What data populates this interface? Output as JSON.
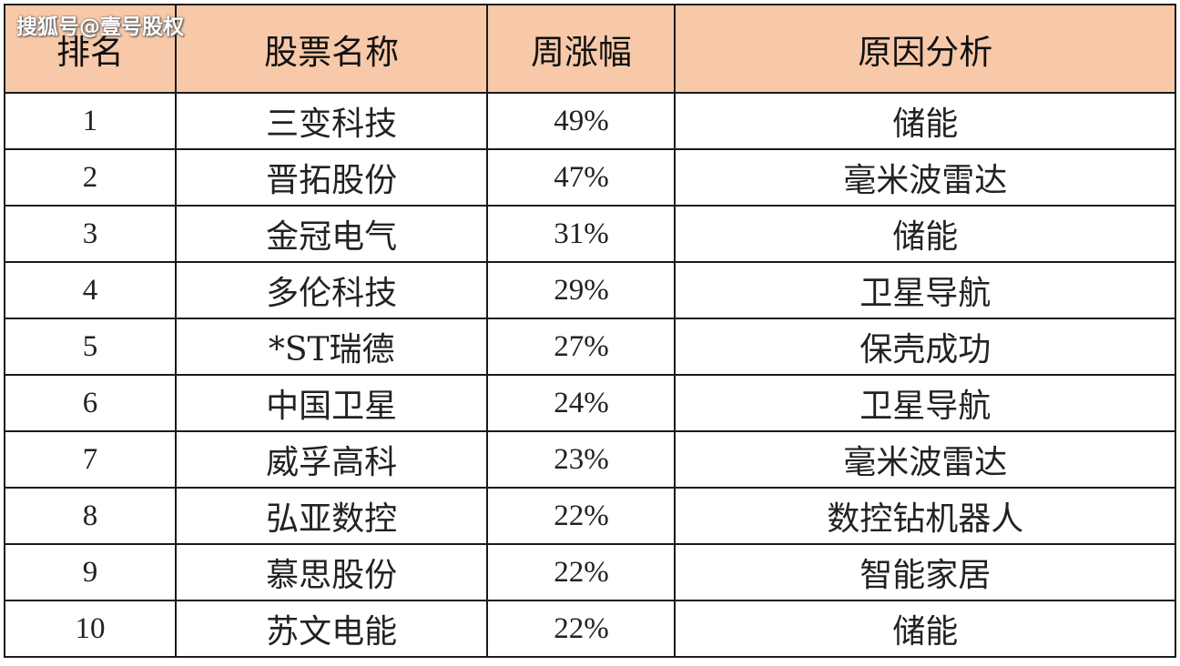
{
  "watermark": "搜狐号@壹号股权",
  "table": {
    "headers": {
      "rank": "排名",
      "name": "股票名称",
      "change": "周涨幅",
      "reason": "原因分析"
    },
    "rows": [
      {
        "rank": "1",
        "name": "三变科技",
        "change": "49%",
        "reason": "储能"
      },
      {
        "rank": "2",
        "name": "晋拓股份",
        "change": "47%",
        "reason": "毫米波雷达"
      },
      {
        "rank": "3",
        "name": "金冠电气",
        "change": "31%",
        "reason": "储能"
      },
      {
        "rank": "4",
        "name": "多伦科技",
        "change": "29%",
        "reason": "卫星导航"
      },
      {
        "rank": "5",
        "name": "*ST瑞德",
        "change": "27%",
        "reason": "保壳成功"
      },
      {
        "rank": "6",
        "name": "中国卫星",
        "change": "24%",
        "reason": "卫星导航"
      },
      {
        "rank": "7",
        "name": "威孚高科",
        "change": "23%",
        "reason": "毫米波雷达"
      },
      {
        "rank": "8",
        "name": "弘亚数控",
        "change": "22%",
        "reason": "数控钻机器人"
      },
      {
        "rank": "9",
        "name": "慕思股份",
        "change": "22%",
        "reason": "智能家居"
      },
      {
        "rank": "10",
        "name": "苏文电能",
        "change": "22%",
        "reason": "储能"
      }
    ]
  },
  "colors": {
    "header_bg": "#f7c9a9",
    "border": "#1a1a1a"
  }
}
